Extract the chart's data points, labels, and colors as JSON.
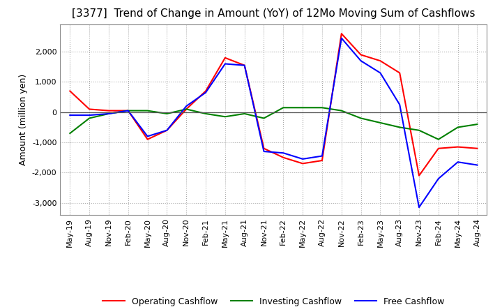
{
  "title": "[3377]  Trend of Change in Amount (YoY) of 12Mo Moving Sum of Cashflows",
  "ylabel": "Amount (million yen)",
  "x_labels": [
    "May-19",
    "Aug-19",
    "Nov-19",
    "Feb-20",
    "May-20",
    "Aug-20",
    "Nov-20",
    "Feb-21",
    "May-21",
    "Aug-21",
    "Nov-21",
    "Feb-22",
    "May-22",
    "Aug-22",
    "Nov-22",
    "Feb-23",
    "May-23",
    "Aug-23",
    "Nov-23",
    "Feb-24",
    "May-24",
    "Aug-24"
  ],
  "operating": [
    700,
    100,
    50,
    50,
    -900,
    -600,
    100,
    700,
    1800,
    1550,
    -1200,
    -1500,
    -1700,
    -1600,
    2600,
    1900,
    1700,
    1300,
    -2100,
    -1200,
    -1150,
    -1200
  ],
  "investing": [
    -700,
    -200,
    -50,
    50,
    50,
    -50,
    100,
    -50,
    -150,
    -50,
    -200,
    150,
    150,
    150,
    50,
    -200,
    -350,
    -500,
    -600,
    -900,
    -500,
    -400
  ],
  "free": [
    -100,
    -100,
    -50,
    50,
    -800,
    -600,
    200,
    650,
    1600,
    1550,
    -1300,
    -1350,
    -1550,
    -1450,
    2450,
    1700,
    1300,
    250,
    -3150,
    -2200,
    -1650,
    -1750
  ],
  "ylim": [
    -3400,
    2900
  ],
  "yticks": [
    -3000,
    -2000,
    -1000,
    0,
    1000,
    2000
  ],
  "operating_color": "#ff0000",
  "investing_color": "#008000",
  "free_color": "#0000ff",
  "background_color": "#ffffff",
  "grid_color": "#aaaaaa",
  "title_fontsize": 11,
  "axis_fontsize": 9,
  "tick_fontsize": 8,
  "legend_fontsize": 9
}
